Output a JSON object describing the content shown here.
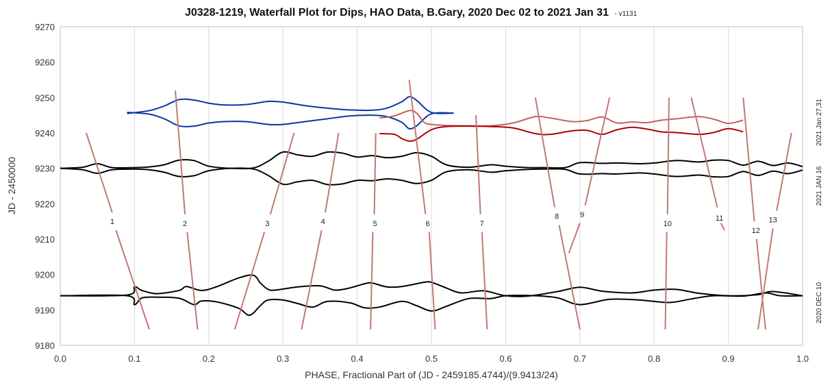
{
  "chart_data": {
    "type": "line",
    "title": "J0328-1219, Waterfall Plot for Dips, HAO Data, B.Gary, 2020 Dec 02 to 2021 Jan 31",
    "subtitle": "- v1131",
    "xlabel": "PHASE, Fractional Part of (JD - 2459185.4744)/(9.9413/24)",
    "ylabel": "JD - 2450000",
    "xlim": [
      0.0,
      1.0
    ],
    "ylim": [
      9180,
      9270
    ],
    "xticks": [
      "0.0",
      "0.1",
      "0.2",
      "0.3",
      "0.4",
      "0.5",
      "0.6",
      "0.7",
      "0.8",
      "0.9",
      "1.0"
    ],
    "yticks": [
      "9180",
      "9190",
      "9200",
      "9210",
      "9220",
      "9230",
      "9240",
      "9250",
      "9260",
      "9270"
    ],
    "grid": "vertical",
    "colors": {
      "black_series": "#000000",
      "blue_series": "#0a35a8",
      "dark_red_series": "#b00000",
      "light_red_series": "#c06060",
      "dip_lines": "#c07872",
      "grid": "#d9d9d9",
      "frame": "#bfbfbf"
    },
    "right_labels": [
      {
        "text": "2021 Jan 27,31",
        "y": 9243
      },
      {
        "text": "2021 JAN 16",
        "y": 9225
      },
      {
        "text": "2020 DEC 10",
        "y": 9192
      }
    ],
    "series": [
      {
        "group": "2020 DEC 10 upper",
        "color": "#000000",
        "x": [
          0.0,
          0.09,
          0.1,
          0.11,
          0.13,
          0.16,
          0.17,
          0.19,
          0.21,
          0.24,
          0.26,
          0.27,
          0.28,
          0.29,
          0.32,
          0.35,
          0.37,
          0.39,
          0.41,
          0.42,
          0.44,
          0.46,
          0.49,
          0.5,
          0.52,
          0.54,
          0.57,
          0.6,
          0.63,
          0.67,
          0.7,
          0.73,
          0.77,
          0.8,
          0.83,
          0.86,
          0.9,
          0.94,
          0.96,
          1.0
        ],
        "y": [
          9194,
          9194.2,
          9196.5,
          9195.5,
          9194.6,
          9195.5,
          9196.6,
          9195.5,
          9196.5,
          9199,
          9199.8,
          9197.5,
          9195.8,
          9195.6,
          9196.5,
          9196.8,
          9195.6,
          9196.2,
          9197.4,
          9197.6,
          9196.5,
          9196.6,
          9197.8,
          9197.8,
          9196.2,
          9194.8,
          9195.4,
          9194,
          9193.9,
          9195.2,
          9196.4,
          9195.3,
          9194.8,
          9195.6,
          9195.8,
          9194.7,
          9194,
          9194.3,
          9195.2,
          9194
        ]
      },
      {
        "group": "2020 DEC 10 lower",
        "color": "#000000",
        "x": [
          0.0,
          0.09,
          0.1,
          0.11,
          0.13,
          0.16,
          0.18,
          0.19,
          0.21,
          0.24,
          0.255,
          0.27,
          0.28,
          0.3,
          0.32,
          0.34,
          0.36,
          0.39,
          0.41,
          0.43,
          0.46,
          0.48,
          0.5,
          0.52,
          0.55,
          0.58,
          0.6,
          0.64,
          0.67,
          0.7,
          0.74,
          0.78,
          0.82,
          0.85,
          0.88,
          0.92,
          0.95,
          0.97,
          1.0
        ],
        "y": [
          9194,
          9194,
          9191.5,
          9193.4,
          9193.6,
          9193.3,
          9191.5,
          9192.5,
          9192.3,
          9190.5,
          9188.5,
          9191.3,
          9192.8,
          9192.8,
          9191.8,
          9190.8,
          9192.4,
          9192,
          9190.6,
          9190.8,
          9192.4,
          9191.2,
          9189.7,
          9191,
          9193.2,
          9193.2,
          9194,
          9194,
          9193.4,
          9191.5,
          9193,
          9192.8,
          9192.1,
          9193.1,
          9194,
          9193.9,
          9194.8,
          9194,
          9194
        ]
      },
      {
        "group": "2021 JAN 16 upper",
        "color": "#000000",
        "x": [
          0.0,
          0.03,
          0.05,
          0.07,
          0.1,
          0.12,
          0.14,
          0.16,
          0.18,
          0.2,
          0.23,
          0.26,
          0.28,
          0.3,
          0.32,
          0.34,
          0.36,
          0.38,
          0.4,
          0.42,
          0.44,
          0.46,
          0.48,
          0.5,
          0.52,
          0.55,
          0.58,
          0.6,
          0.63,
          0.65,
          0.68,
          0.7,
          0.73,
          0.75,
          0.78,
          0.8,
          0.83,
          0.86,
          0.88,
          0.9,
          0.92,
          0.94,
          0.96,
          0.98,
          1.0
        ],
        "y": [
          9230,
          9230.3,
          9231.3,
          9230.2,
          9230.2,
          9230.4,
          9231,
          9232.3,
          9232.2,
          9230.6,
          9230,
          9230.1,
          9232,
          9234.6,
          9233.8,
          9233.4,
          9234.6,
          9234.3,
          9233.2,
          9233.6,
          9233,
          9233.4,
          9234.4,
          9233.4,
          9231,
          9230.3,
          9231,
          9230.6,
          9230.2,
          9230.2,
          9230.2,
          9231.6,
          9231.4,
          9231.5,
          9231.3,
          9231.5,
          9232.2,
          9231.8,
          9232.3,
          9232.2,
          9230.9,
          9232,
          9230.8,
          9231.5,
          9230.5
        ]
      },
      {
        "group": "2021 JAN 16 lower",
        "color": "#000000",
        "x": [
          0.0,
          0.03,
          0.05,
          0.07,
          0.1,
          0.12,
          0.14,
          0.16,
          0.18,
          0.2,
          0.23,
          0.26,
          0.28,
          0.3,
          0.32,
          0.34,
          0.36,
          0.38,
          0.4,
          0.42,
          0.44,
          0.46,
          0.48,
          0.5,
          0.52,
          0.55,
          0.58,
          0.6,
          0.63,
          0.65,
          0.68,
          0.7,
          0.73,
          0.75,
          0.78,
          0.8,
          0.83,
          0.86,
          0.88,
          0.9,
          0.92,
          0.94,
          0.96,
          0.98,
          1.0
        ],
        "y": [
          9230,
          9229.6,
          9228.6,
          9229.6,
          9229.8,
          9229.6,
          9228.9,
          9227.7,
          9227.9,
          9229.3,
          9230,
          9229.8,
          9228,
          9225.5,
          9226.2,
          9226.6,
          9225.4,
          9225.6,
          9226.6,
          9226.5,
          9227,
          9226.6,
          9225.7,
          9226.6,
          9229,
          9229.6,
          9228.9,
          9229.3,
          9229.7,
          9229.8,
          9229.7,
          9228.4,
          9228.5,
          9228.4,
          9228.7,
          9228.4,
          9227.7,
          9228.1,
          9227.6,
          9227.7,
          9229.1,
          9228,
          9229.2,
          9228.5,
          9229.5
        ]
      },
      {
        "group": "2021 Jan 27 upper",
        "color": "#0a35a8",
        "x": [
          0.09,
          0.12,
          0.14,
          0.16,
          0.18,
          0.2,
          0.22,
          0.25,
          0.28,
          0.3,
          0.33,
          0.36,
          0.39,
          0.42,
          0.44,
          0.46,
          0.47,
          0.48,
          0.5,
          0.53
        ],
        "y": [
          9245.5,
          9246.3,
          9247.6,
          9249.4,
          9249.3,
          9248.4,
          9247.9,
          9248,
          9248.9,
          9248.7,
          9247.7,
          9247,
          9246.5,
          9246.4,
          9247,
          9248.8,
          9250.2,
          9249.2,
          9245.8,
          9245.6
        ]
      },
      {
        "group": "2021 Jan 27 lower",
        "color": "#0a35a8",
        "x": [
          0.09,
          0.12,
          0.14,
          0.16,
          0.18,
          0.2,
          0.22,
          0.25,
          0.28,
          0.3,
          0.33,
          0.36,
          0.39,
          0.42,
          0.44,
          0.46,
          0.47,
          0.48,
          0.5,
          0.53
        ],
        "y": [
          9245.8,
          9245.3,
          9244,
          9242,
          9241.9,
          9242.8,
          9243.2,
          9243.2,
          9242.4,
          9242.4,
          9243.2,
          9244,
          9244.8,
          9245,
          9244.6,
          9243,
          9241.2,
          9242,
          9245.4,
          9245.6
        ]
      },
      {
        "group": "2021 Jan 31 light",
        "color": "#c06060",
        "x": [
          0.43,
          0.45,
          0.47,
          0.48,
          0.49,
          0.5,
          0.52,
          0.55,
          0.58,
          0.61,
          0.64,
          0.66,
          0.69,
          0.71,
          0.73,
          0.75,
          0.77,
          0.79,
          0.81,
          0.83,
          0.86,
          0.88,
          0.9,
          0.92
        ],
        "y": [
          9244.2,
          9244.8,
          9246.3,
          9245.6,
          9243,
          9242.4,
          9242.1,
          9242,
          9242,
          9242.8,
          9244.6,
          9244.2,
          9243.2,
          9243.5,
          9244.5,
          9242.8,
          9243.1,
          9242.9,
          9243.6,
          9244,
          9244.6,
          9243.9,
          9242.7,
          9243.6
        ]
      },
      {
        "group": "2021 Jan 31 dark",
        "color": "#b00000",
        "x": [
          0.43,
          0.45,
          0.46,
          0.47,
          0.48,
          0.5,
          0.52,
          0.55,
          0.58,
          0.61,
          0.64,
          0.66,
          0.69,
          0.71,
          0.73,
          0.75,
          0.77,
          0.79,
          0.81,
          0.83,
          0.86,
          0.88,
          0.9,
          0.92
        ],
        "y": [
          9239.8,
          9239.6,
          9238.4,
          9237.7,
          9238.2,
          9240.9,
          9241.8,
          9241.9,
          9241.8,
          9241.4,
          9239.8,
          9239.6,
          9240.6,
          9240.7,
          9239.6,
          9240.9,
          9241.6,
          9241.1,
          9240.3,
          9240.1,
          9239.6,
          9240.1,
          9241.2,
          9240.3
        ]
      }
    ],
    "dip_lines": [
      {
        "label": "1",
        "label_x": 0.07,
        "label_y": 9215,
        "segments": [
          [
            0.035,
            9240,
            0.07,
            9217.5
          ],
          [
            0.075,
            9212.5,
            0.12,
            9184.5
          ]
        ]
      },
      {
        "label": "2",
        "label_x": 0.168,
        "label_y": 9214.5,
        "segments": [
          [
            0.155,
            9252,
            0.168,
            9217
          ],
          [
            0.171,
            9212,
            0.185,
            9184.5
          ]
        ]
      },
      {
        "label": "3",
        "label_x": 0.279,
        "label_y": 9214.5,
        "segments": [
          [
            0.315,
            9240,
            0.283,
            9217
          ],
          [
            0.275,
            9212,
            0.235,
            9184.5
          ]
        ]
      },
      {
        "label": "4",
        "label_x": 0.354,
        "label_y": 9215,
        "segments": [
          [
            0.375,
            9240,
            0.357,
            9217.5
          ],
          [
            0.352,
            9212.5,
            0.325,
            9184.5
          ]
        ]
      },
      {
        "label": "5",
        "label_x": 0.424,
        "label_y": 9214.5,
        "segments": [
          [
            0.425,
            9240,
            0.423,
            9217
          ],
          [
            0.421,
            9212,
            0.418,
            9184.5
          ]
        ]
      },
      {
        "label": "6",
        "label_x": 0.495,
        "label_y": 9214.5,
        "segments": [
          [
            0.47,
            9255,
            0.492,
            9217
          ],
          [
            0.497,
            9212,
            0.505,
            9184.5
          ]
        ]
      },
      {
        "label": "7",
        "label_x": 0.568,
        "label_y": 9214.5,
        "segments": [
          [
            0.56,
            9245,
            0.566,
            9217
          ],
          [
            0.568,
            9212,
            0.575,
            9184.5
          ]
        ]
      },
      {
        "label": "8",
        "label_x": 0.669,
        "label_y": 9216.5,
        "segments": [
          [
            0.64,
            9250,
            0.666,
            9219
          ],
          [
            0.672,
            9214,
            0.7,
            9184.5
          ]
        ]
      },
      {
        "label": "9",
        "label_x": 0.703,
        "label_y": 9217,
        "segments": [
          [
            0.74,
            9250,
            0.707,
            9219.5
          ],
          [
            0.7,
            9214.5,
            0.685,
            9206
          ]
        ]
      },
      {
        "label": "10",
        "label_x": 0.818,
        "label_y": 9214.5,
        "segments": [
          [
            0.82,
            9250,
            0.818,
            9217
          ],
          [
            0.817,
            9212,
            0.815,
            9184.5
          ]
        ]
      },
      {
        "label": "11",
        "label_x": 0.888,
        "label_y": 9216,
        "segments": [
          [
            0.85,
            9250,
            0.885,
            9219
          ],
          [
            0.89,
            9214.5,
            0.895,
            9212.5
          ]
        ]
      },
      {
        "label": "12",
        "label_x": 0.937,
        "label_y": 9212.5,
        "segments": [
          [
            0.92,
            9250,
            0.935,
            9215
          ],
          [
            0.938,
            9210,
            0.95,
            9184.5
          ]
        ]
      },
      {
        "label": "13",
        "label_x": 0.96,
        "label_y": 9215.5,
        "segments": [
          [
            0.985,
            9240,
            0.965,
            9218
          ],
          [
            0.96,
            9213,
            0.94,
            9184.5
          ]
        ]
      }
    ]
  }
}
